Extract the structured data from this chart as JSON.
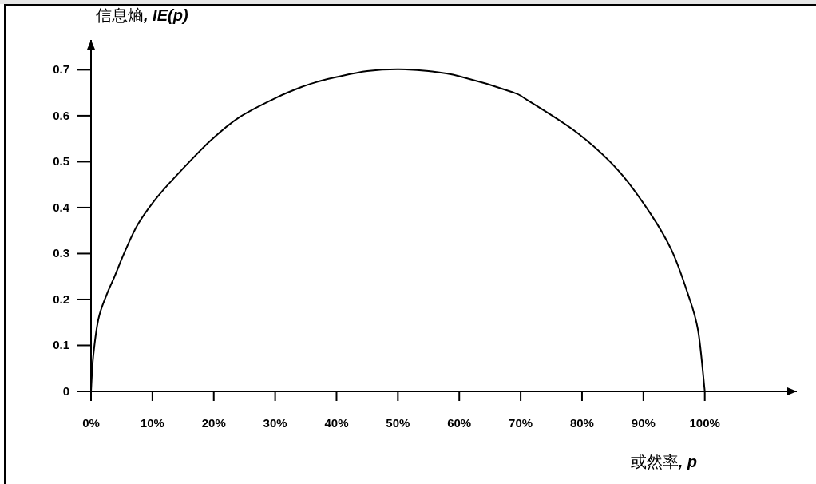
{
  "chart_data": {
    "type": "line",
    "xlabel": "或然率, p",
    "ylabel": "信息熵, IE(p)",
    "x": [
      0,
      0.35,
      1.2,
      2.5,
      3.8,
      5.6,
      7.7,
      10.8,
      14.7,
      19.4,
      24.2,
      30.3,
      34.6,
      37.2,
      40,
      45,
      50,
      55,
      60,
      68.5,
      71.1,
      79.3,
      85.9,
      91.1,
      94.6,
      97.2,
      98.9,
      100
    ],
    "values": [
      0,
      0.075,
      0.157,
      0.209,
      0.249,
      0.307,
      0.365,
      0.423,
      0.481,
      0.545,
      0.597,
      0.64,
      0.664,
      0.675,
      0.684,
      0.697,
      0.701,
      0.697,
      0.686,
      0.652,
      0.634,
      0.562,
      0.481,
      0.388,
      0.307,
      0.214,
      0.133,
      0
    ],
    "color": "#000000",
    "marker": "none",
    "line_style": "solid",
    "xlim": [
      0,
      115
    ],
    "ylim": [
      0,
      0.765
    ],
    "xticks": [
      {
        "value": 0,
        "label": "0%"
      },
      {
        "value": 10,
        "label": "10%"
      },
      {
        "value": 20,
        "label": "20%"
      },
      {
        "value": 30,
        "label": "30%"
      },
      {
        "value": 40,
        "label": "40%"
      },
      {
        "value": 50,
        "label": "50%"
      },
      {
        "value": 60,
        "label": "60%"
      },
      {
        "value": 70,
        "label": "70%"
      },
      {
        "value": 80,
        "label": "80%"
      },
      {
        "value": 90,
        "label": "90%"
      },
      {
        "value": 100,
        "label": "100%"
      }
    ],
    "yticks": [
      0,
      0.1,
      0.2,
      0.3,
      0.4,
      0.5,
      0.6,
      0.7
    ]
  }
}
